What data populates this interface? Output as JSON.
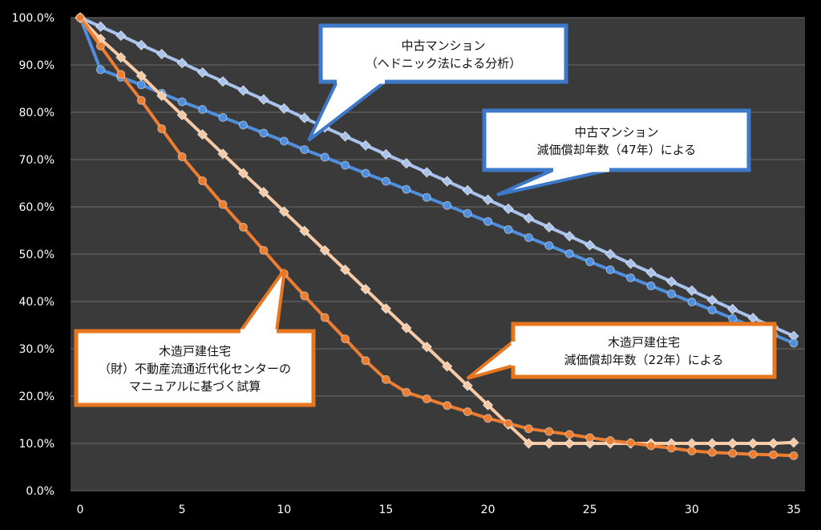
{
  "chart_data": {
    "type": "line",
    "xlim": [
      0,
      35
    ],
    "ylim": [
      0,
      100
    ],
    "x_ticks": [
      0,
      5,
      10,
      15,
      20,
      25,
      30,
      35
    ],
    "y_ticks": [
      "0.0%",
      "10.0%",
      "20.0%",
      "30.0%",
      "40.0%",
      "50.0%",
      "60.0%",
      "70.0%",
      "80.0%",
      "90.0%",
      "100.0%"
    ],
    "grid": true,
    "x": [
      0,
      1,
      2,
      3,
      4,
      5,
      6,
      7,
      8,
      9,
      10,
      11,
      12,
      13,
      14,
      15,
      16,
      17,
      18,
      19,
      20,
      21,
      22,
      23,
      24,
      25,
      26,
      27,
      28,
      29,
      30,
      31,
      32,
      33,
      34,
      35
    ],
    "series": [
      {
        "key": "mansion_hedonic",
        "color": "#a9c4ec",
        "marker": "diamond",
        "values": [
          100,
          98.1,
          96.2,
          94.2,
          92.3,
          90.4,
          88.4,
          86.5,
          84.6,
          82.7,
          80.8,
          78.8,
          76.8,
          74.9,
          73.0,
          71.1,
          69.2,
          67.3,
          65.4,
          63.5,
          61.5,
          59.6,
          57.6,
          55.7,
          53.8,
          51.9,
          50.0,
          48.0,
          46.1,
          44.2,
          42.3,
          40.3,
          38.4,
          36.5,
          34.6,
          32.7
        ]
      },
      {
        "key": "mansion_dep47",
        "color": "#4f8fde",
        "marker": "circle",
        "values": [
          100,
          89.0,
          87.4,
          85.8,
          84.0,
          82.2,
          80.6,
          78.9,
          77.3,
          75.6,
          73.9,
          72.1,
          70.5,
          68.8,
          67.1,
          65.4,
          63.7,
          62.0,
          60.3,
          58.6,
          56.9,
          55.2,
          53.5,
          51.8,
          50.1,
          48.4,
          46.7,
          45.0,
          43.3,
          41.6,
          39.9,
          38.2,
          36.4,
          34.7,
          33.0,
          31.2
        ]
      },
      {
        "key": "wood_dep22",
        "color": "#f7c9a4",
        "marker": "diamond",
        "values": [
          100,
          95.5,
          91.6,
          87.7,
          83.5,
          79.4,
          75.3,
          71.2,
          67.1,
          63.1,
          59.0,
          54.9,
          50.8,
          46.7,
          42.6,
          38.5,
          34.4,
          30.4,
          26.3,
          22.2,
          18.1,
          14.0,
          10.0,
          10.0,
          10.0,
          10.0,
          10.0,
          10.0,
          10.0,
          10.0,
          10.0,
          10.0,
          10.0,
          10.0,
          10.0,
          10.2
        ]
      },
      {
        "key": "wood_manual",
        "color": "#ed7d31",
        "marker": "circle",
        "values": [
          100,
          94.0,
          88.0,
          82.5,
          76.5,
          70.6,
          65.5,
          60.5,
          55.7,
          50.8,
          45.9,
          41.2,
          36.6,
          32.1,
          27.5,
          23.5,
          20.8,
          19.4,
          18.0,
          16.7,
          15.3,
          14.2,
          13.1,
          12.5,
          11.9,
          11.2,
          10.6,
          10.1,
          9.5,
          9.0,
          8.4,
          8.1,
          7.9,
          7.7,
          7.6,
          7.4
        ]
      }
    ],
    "callouts": [
      {
        "key": "c1",
        "lines": [
          "中古マンション",
          "（ヘドニック法による分析）"
        ]
      },
      {
        "key": "c2",
        "lines": [
          "中古マンション",
          "減価償却年数（47年）による"
        ]
      },
      {
        "key": "c3",
        "lines": [
          "木造戸建住宅",
          "減価償却年数（22年）による"
        ]
      },
      {
        "key": "c4",
        "lines": [
          "木造戸建住宅",
          "（財）不動産流通近代化センターの",
          "マニュアルに基づく試算"
        ]
      }
    ]
  },
  "colors": {
    "plot_bg": "#3a3a3a",
    "grid": "#6a6a6a",
    "callout_blue_border": "#3d78c9",
    "callout_orange_border": "#e8761e",
    "callout_fill": "#ffffff"
  }
}
